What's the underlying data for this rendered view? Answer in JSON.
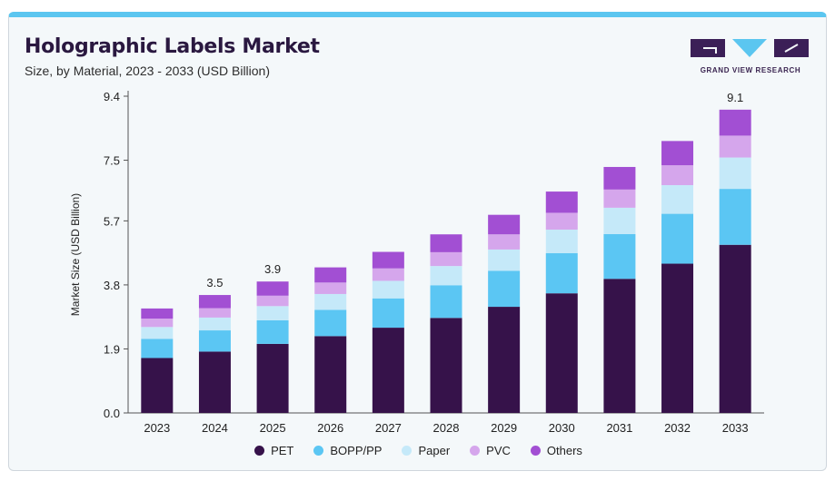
{
  "header": {
    "title": "Holographic Labels Market",
    "subtitle": "Size, by Material, 2023 - 2033 (USD Billion)"
  },
  "brand": {
    "name": "GRAND VIEW RESEARCH",
    "colors": {
      "dark": "#3b1f57",
      "accent": "#5bc6f0"
    }
  },
  "chart_data": {
    "type": "bar",
    "stacked": true,
    "categories": [
      "2023",
      "2024",
      "2025",
      "2026",
      "2027",
      "2028",
      "2029",
      "2030",
      "2031",
      "2032",
      "2033"
    ],
    "ylabel": "Market Size (USD Billion)",
    "xlabel": "",
    "ylim": [
      0,
      9.4
    ],
    "yticks": [
      "0.0",
      "1.9",
      "3.8",
      "5.7",
      "7.5",
      "9.4"
    ],
    "grid": false,
    "legend_position": "bottom",
    "series": [
      {
        "name": "PET",
        "color": "#36124a",
        "values": [
          1.63,
          1.82,
          2.05,
          2.28,
          2.53,
          2.82,
          3.15,
          3.55,
          3.98,
          4.43,
          4.99
        ]
      },
      {
        "name": "BOPP/PP",
        "color": "#5bc6f3",
        "values": [
          0.57,
          0.63,
          0.7,
          0.78,
          0.87,
          0.97,
          1.07,
          1.19,
          1.33,
          1.48,
          1.66
        ]
      },
      {
        "name": "Paper",
        "color": "#c5e9f9",
        "values": [
          0.35,
          0.38,
          0.42,
          0.47,
          0.52,
          0.57,
          0.63,
          0.7,
          0.78,
          0.85,
          0.93
        ]
      },
      {
        "name": "PVC",
        "color": "#d5a6ec",
        "values": [
          0.25,
          0.28,
          0.31,
          0.34,
          0.37,
          0.41,
          0.45,
          0.5,
          0.54,
          0.59,
          0.65
        ]
      },
      {
        "name": "Others",
        "color": "#a24fd3",
        "values": [
          0.3,
          0.39,
          0.42,
          0.45,
          0.49,
          0.53,
          0.58,
          0.63,
          0.67,
          0.72,
          0.77
        ]
      }
    ],
    "annotations": [
      {
        "category": "2024",
        "label": "3.5"
      },
      {
        "category": "2025",
        "label": "3.9"
      },
      {
        "category": "2033",
        "label": "9.1"
      }
    ]
  }
}
